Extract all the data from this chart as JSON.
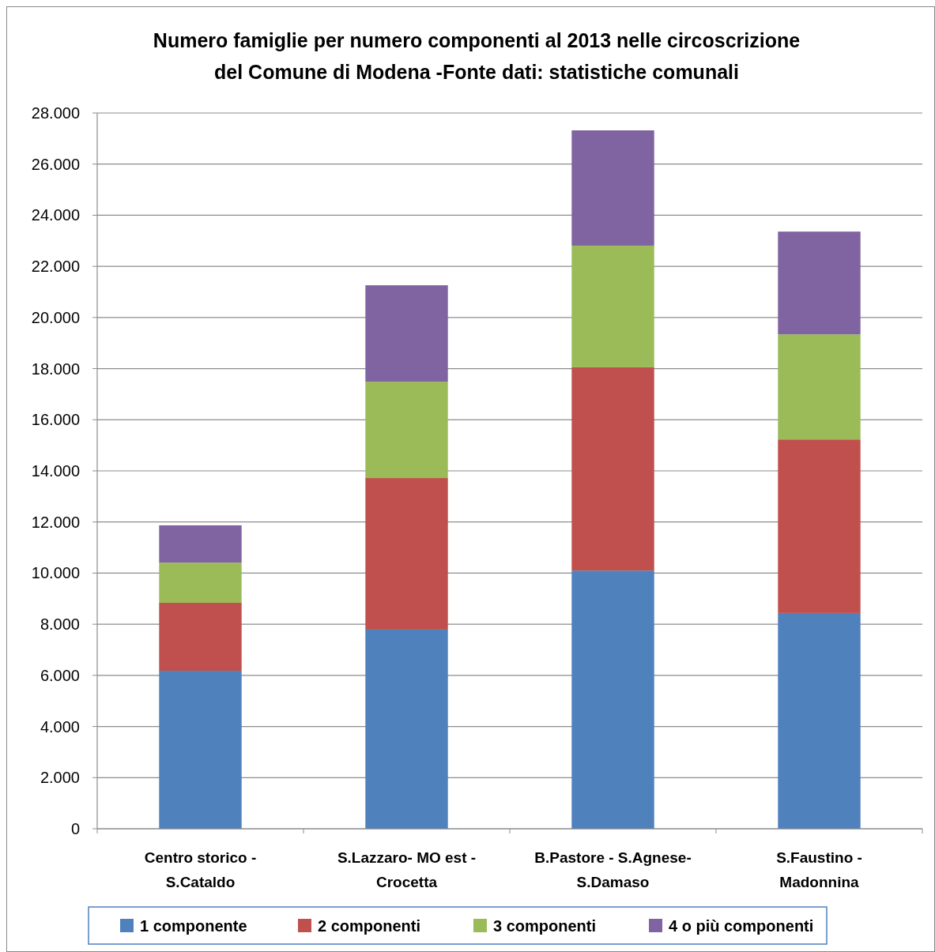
{
  "chart_data": {
    "type": "bar",
    "stacked": true,
    "title": "Numero famiglie per numero componenti al 2013 nelle circoscrizione\ndel Comune di Modena -Fonte dati: statistiche comunali",
    "categories": [
      "Centro storico -\nS.Cataldo",
      "S.Lazzaro- MO  est -\nCrocetta",
      "B.Pastore - S.Agnese-\nS.Damaso",
      "S.Faustino -\nMadonnina"
    ],
    "series": [
      {
        "name": "1 componente",
        "color": "#4f81bd",
        "values": [
          6180,
          7790,
          10100,
          8440
        ]
      },
      {
        "name": "2 componenti",
        "color": "#c0504d",
        "values": [
          2660,
          5930,
          7950,
          6790
        ]
      },
      {
        "name": "3 componenti",
        "color": "#9bbb59",
        "values": [
          1570,
          3770,
          4760,
          4110
        ]
      },
      {
        "name": "4 o più componenti",
        "color": "#8064a2",
        "values": [
          1460,
          3770,
          4510,
          4020
        ]
      }
    ],
    "ylim": [
      0,
      28000
    ],
    "yticks": [
      0,
      {
        "value": 2000,
        "label": "2.000"
      },
      {
        "value": 4000,
        "label": "4.000"
      },
      {
        "value": 6000,
        "label": "6.000"
      },
      {
        "value": 8000,
        "label": "8.000"
      },
      {
        "value": 10000,
        "label": "10.000"
      },
      {
        "value": 12000,
        "label": "12.000"
      },
      {
        "value": 14000,
        "label": "14.000"
      },
      {
        "value": 16000,
        "label": "16.000"
      },
      {
        "value": 18000,
        "label": "18.000"
      },
      {
        "value": 20000,
        "label": "20.000"
      },
      {
        "value": 22000,
        "label": "22.000"
      },
      {
        "value": 24000,
        "label": "24.000"
      },
      {
        "value": 26000,
        "label": "26.000"
      },
      {
        "value": 28000,
        "label": "28.000"
      }
    ],
    "grid": "y",
    "legend": "bottom"
  }
}
